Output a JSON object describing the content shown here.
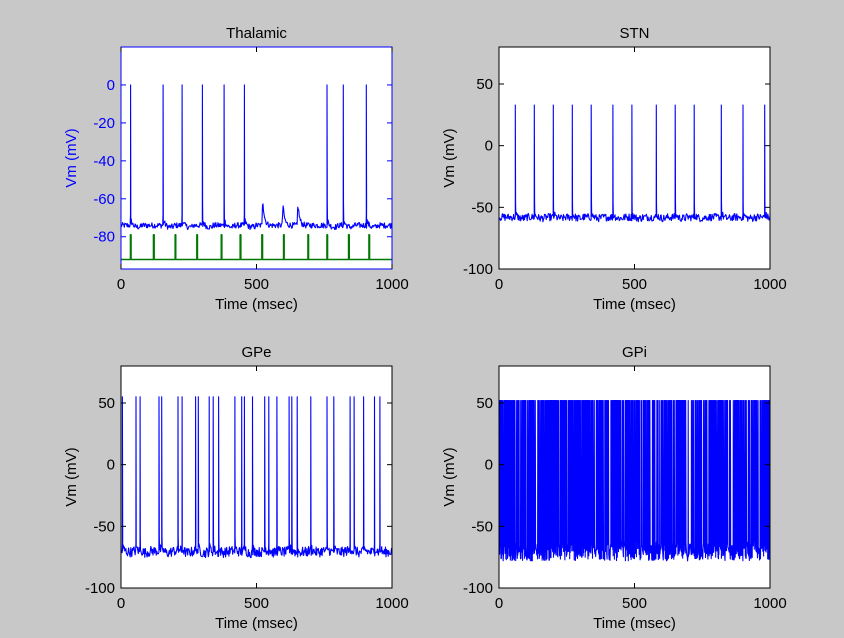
{
  "figure": {
    "background": "#c8c8c8"
  },
  "chart_data": [
    {
      "type": "line",
      "title": "Thalamic",
      "xlabel": "Time (msec)",
      "ylabel": "Vm (mV)",
      "xlim": [
        0,
        1000
      ],
      "ylim": [
        -97,
        20
      ],
      "xticks": [
        0,
        500,
        1000
      ],
      "yticks": [
        0,
        -20,
        -40,
        -60,
        -80
      ],
      "axis_color": "#0000ff",
      "grid": false,
      "series": [
        {
          "color": "#0000ff",
          "kind": "spikes",
          "baseline": -74,
          "noise": 1.5,
          "spike_times": [
            35,
            155,
            225,
            300,
            380,
            455,
            760,
            820,
            905
          ],
          "spike_peak": 0,
          "small_bumps": [
            {
              "t": 520,
              "peak": -50
            },
            {
              "t": 595,
              "peak": -57
            },
            {
              "t": 650,
              "peak": -55
            }
          ]
        },
        {
          "color": "#007700",
          "kind": "pulses",
          "baseline": -92,
          "pulse_top": -79,
          "pulse_times": [
            35,
            120,
            200,
            280,
            370,
            440,
            520,
            600,
            690,
            760,
            840,
            915
          ]
        }
      ]
    },
    {
      "type": "line",
      "title": "STN",
      "xlabel": "Time (msec)",
      "ylabel": "Vm (mV)",
      "xlim": [
        0,
        1000
      ],
      "ylim": [
        -100,
        80
      ],
      "xticks": [
        0,
        500,
        1000
      ],
      "yticks": [
        50,
        0,
        -50,
        -100
      ],
      "axis_color": "#000000",
      "grid": false,
      "series": [
        {
          "color": "#0000ff",
          "kind": "spikes",
          "baseline": -58,
          "noise": 3,
          "spike_times": [
            60,
            130,
            200,
            270,
            340,
            420,
            490,
            580,
            650,
            720,
            820,
            900,
            980
          ],
          "spike_peak": 33
        }
      ]
    },
    {
      "type": "line",
      "title": "GPe",
      "xlabel": "Time (msec)",
      "ylabel": "Vm (mV)",
      "xlim": [
        0,
        1000
      ],
      "ylim": [
        -100,
        80
      ],
      "xticks": [
        0,
        500,
        1000
      ],
      "yticks": [
        50,
        0,
        -50,
        -100
      ],
      "axis_color": "#000000",
      "grid": false,
      "series": [
        {
          "color": "#0000ff",
          "kind": "spikes",
          "baseline": -70,
          "noise": 4,
          "spike_times": [
            5,
            55,
            70,
            140,
            150,
            210,
            225,
            275,
            285,
            325,
            340,
            360,
            420,
            445,
            455,
            485,
            530,
            545,
            575,
            620,
            630,
            650,
            700,
            760,
            785,
            845,
            860,
            895,
            935,
            955
          ],
          "spike_peak": 55
        }
      ]
    },
    {
      "type": "line",
      "title": "GPi",
      "xlabel": "Time (msec)",
      "ylabel": "Vm (mV)",
      "xlim": [
        0,
        1000
      ],
      "ylim": [
        -100,
        80
      ],
      "xticks": [
        0,
        500,
        1000
      ],
      "yticks": [
        50,
        0,
        -50,
        -100
      ],
      "axis_color": "#000000",
      "grid": false,
      "series": [
        {
          "color": "#0000ff",
          "kind": "burst",
          "baseline": -70,
          "low": -78,
          "spike_peak": 52,
          "density": 0.6
        }
      ]
    }
  ]
}
